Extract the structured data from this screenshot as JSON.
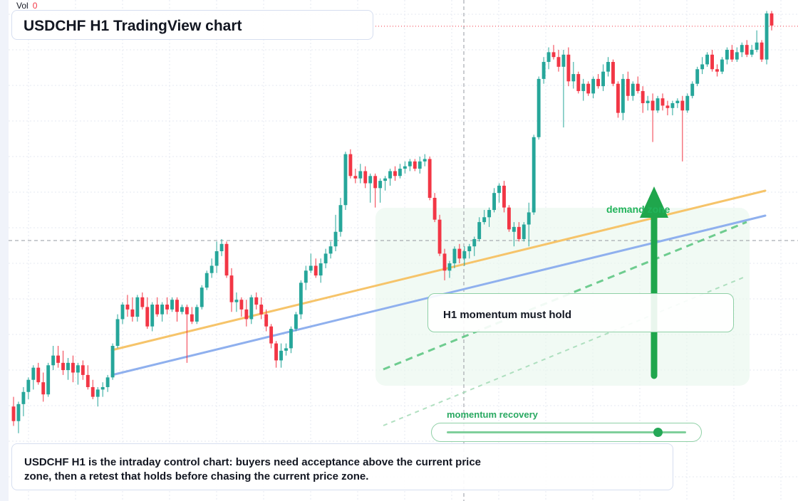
{
  "header": {
    "vol_label": "Vol",
    "vol_value": "0",
    "title": "USDCHF H1 TradingView chart"
  },
  "annotations": {
    "callout": "H1 momentum must hold",
    "zone_label": "demand zone",
    "momentum_label": "momentum recovery",
    "momentum_level": 0.88
  },
  "footer": {
    "text": "USDCHF H1 is the intraday control chart: buyers need acceptance above the current price zone, then a retest that holds before chasing the current price zone."
  },
  "colors": {
    "up": "#26a69a",
    "down": "#f23645",
    "resistance_line": "#f6c46a",
    "trend_line": "#8fb0ee",
    "arrow": "#1fa64c",
    "zone": "#e8f6ec"
  },
  "chart_data": {
    "type": "candlestick",
    "y_unit": "price (relative, no scale printed)",
    "y_range": [
      0,
      100
    ],
    "candles_ohlc": [
      [
        18.0,
        20.0,
        14.0,
        15.0
      ],
      [
        15.0,
        19.0,
        12.5,
        18.5
      ],
      [
        18.5,
        22.0,
        16.0,
        21.0
      ],
      [
        21.0,
        24.0,
        19.5,
        23.5
      ],
      [
        23.5,
        26.5,
        21.5,
        26.0
      ],
      [
        26.0,
        27.0,
        22.5,
        23.0
      ],
      [
        23.0,
        25.0,
        19.0,
        20.5
      ],
      [
        20.5,
        27.0,
        20.0,
        26.5
      ],
      [
        26.5,
        30.5,
        25.5,
        28.5
      ],
      [
        28.5,
        30.5,
        26.0,
        27.0
      ],
      [
        27.0,
        29.5,
        24.5,
        25.5
      ],
      [
        25.5,
        28.0,
        23.5,
        27.0
      ],
      [
        27.0,
        28.5,
        23.0,
        25.0
      ],
      [
        25.0,
        27.0,
        22.5,
        26.5
      ],
      [
        26.5,
        27.5,
        23.5,
        24.5
      ],
      [
        24.5,
        26.5,
        21.5,
        22.0
      ],
      [
        22.0,
        23.5,
        19.5,
        20.0
      ],
      [
        20.0,
        22.0,
        18.0,
        21.5
      ],
      [
        21.5,
        23.0,
        20.0,
        22.0
      ],
      [
        22.0,
        24.5,
        21.0,
        24.0
      ],
      [
        24.0,
        31.0,
        23.5,
        30.5
      ],
      [
        30.5,
        37.0,
        30.0,
        36.0
      ],
      [
        36.0,
        39.5,
        35.0,
        39.0
      ],
      [
        39.0,
        41.0,
        36.5,
        38.0
      ],
      [
        38.0,
        40.5,
        35.5,
        36.5
      ],
      [
        36.5,
        41.0,
        35.5,
        40.5
      ],
      [
        40.5,
        41.5,
        38.0,
        38.5
      ],
      [
        38.5,
        40.5,
        34.0,
        34.5
      ],
      [
        34.5,
        39.5,
        33.5,
        39.0
      ],
      [
        39.0,
        40.5,
        36.5,
        37.0
      ],
      [
        37.0,
        39.5,
        35.5,
        39.0
      ],
      [
        39.0,
        40.5,
        37.0,
        38.0
      ],
      [
        38.0,
        40.5,
        37.5,
        40.0
      ],
      [
        40.0,
        40.5,
        35.5,
        37.5
      ],
      [
        37.5,
        39.0,
        37.0,
        38.5
      ],
      [
        38.5,
        39.0,
        27.0,
        37.0
      ],
      [
        37.0,
        38.5,
        35.0,
        35.5
      ],
      [
        35.5,
        39.0,
        35.0,
        38.5
      ],
      [
        38.5,
        43.0,
        38.0,
        42.5
      ],
      [
        42.5,
        46.0,
        42.0,
        45.5
      ],
      [
        45.5,
        48.5,
        44.5,
        47.0
      ],
      [
        47.0,
        52.0,
        45.5,
        50.0
      ],
      [
        50.0,
        52.5,
        49.0,
        51.5
      ],
      [
        51.5,
        52.0,
        44.5,
        45.0
      ],
      [
        45.0,
        46.5,
        37.5,
        39.5
      ],
      [
        39.5,
        41.5,
        37.5,
        40.0
      ],
      [
        40.0,
        40.5,
        36.5,
        38.0
      ],
      [
        38.0,
        40.0,
        34.5,
        36.0
      ],
      [
        36.0,
        41.0,
        35.0,
        40.5
      ],
      [
        40.5,
        41.5,
        38.0,
        39.0
      ],
      [
        39.0,
        40.5,
        36.0,
        37.0
      ],
      [
        37.0,
        38.0,
        33.5,
        34.5
      ],
      [
        34.5,
        35.0,
        30.0,
        31.0
      ],
      [
        31.0,
        31.5,
        26.0,
        27.5
      ],
      [
        27.5,
        31.0,
        26.0,
        29.5
      ],
      [
        29.5,
        31.0,
        28.5,
        30.0
      ],
      [
        30.0,
        34.5,
        29.0,
        34.0
      ],
      [
        34.0,
        37.5,
        33.5,
        37.0
      ],
      [
        37.0,
        44.0,
        36.0,
        43.5
      ],
      [
        43.5,
        47.0,
        42.0,
        46.0
      ],
      [
        46.0,
        49.5,
        45.5,
        47.0
      ],
      [
        47.0,
        48.5,
        44.5,
        45.0
      ],
      [
        45.0,
        48.5,
        43.5,
        47.5
      ],
      [
        47.5,
        50.5,
        46.5,
        49.5
      ],
      [
        49.5,
        52.0,
        48.5,
        51.0
      ],
      [
        51.0,
        57.5,
        50.0,
        54.0
      ],
      [
        54.0,
        61.0,
        53.0,
        59.5
      ],
      [
        59.5,
        70.5,
        58.5,
        70.0
      ],
      [
        70.0,
        71.0,
        65.0,
        65.5
      ],
      [
        65.5,
        67.0,
        64.0,
        65.0
      ],
      [
        65.0,
        68.0,
        64.0,
        66.5
      ],
      [
        66.5,
        67.5,
        63.0,
        64.0
      ],
      [
        64.0,
        66.0,
        60.0,
        65.5
      ],
      [
        65.5,
        66.0,
        59.0,
        63.0
      ],
      [
        63.0,
        65.0,
        60.0,
        64.5
      ],
      [
        64.5,
        65.5,
        62.5,
        65.0
      ],
      [
        65.0,
        67.0,
        63.5,
        66.5
      ],
      [
        66.5,
        67.5,
        64.5,
        65.5
      ],
      [
        65.5,
        68.0,
        65.0,
        67.0
      ],
      [
        67.0,
        68.5,
        66.0,
        67.5
      ],
      [
        67.5,
        69.0,
        66.5,
        68.5
      ],
      [
        68.5,
        69.0,
        66.5,
        67.0
      ],
      [
        67.0,
        69.5,
        66.0,
        68.5
      ],
      [
        68.5,
        70.0,
        67.5,
        69.0
      ],
      [
        69.0,
        69.5,
        60.5,
        61.0
      ],
      [
        61.0,
        62.0,
        56.0,
        56.5
      ],
      [
        56.5,
        57.5,
        49.0,
        49.5
      ],
      [
        49.5,
        50.5,
        44.0,
        46.0
      ],
      [
        46.0,
        48.0,
        44.5,
        47.5
      ],
      [
        47.5,
        51.0,
        46.5,
        50.5
      ],
      [
        50.5,
        51.5,
        47.5,
        48.5
      ],
      [
        48.5,
        51.0,
        47.0,
        50.0
      ],
      [
        50.0,
        51.5,
        48.5,
        51.0
      ],
      [
        51.0,
        53.0,
        49.0,
        52.5
      ],
      [
        52.5,
        57.0,
        52.0,
        56.0
      ],
      [
        56.0,
        58.5,
        55.5,
        57.0
      ],
      [
        57.0,
        59.0,
        55.0,
        58.5
      ],
      [
        58.5,
        63.0,
        58.0,
        62.0
      ],
      [
        62.0,
        64.0,
        60.0,
        63.5
      ],
      [
        63.5,
        64.5,
        58.0,
        59.0
      ],
      [
        59.0,
        59.5,
        54.0,
        54.5
      ],
      [
        54.0,
        56.0,
        51.0,
        55.0
      ],
      [
        55.0,
        56.0,
        52.0,
        52.5
      ],
      [
        52.5,
        56.0,
        52.0,
        55.5
      ],
      [
        55.5,
        60.0,
        51.0,
        58.0
      ],
      [
        58.0,
        74.0,
        57.5,
        73.5
      ],
      [
        73.5,
        86.0,
        73.0,
        85.5
      ],
      [
        85.5,
        90.0,
        84.5,
        89.0
      ],
      [
        89.0,
        92.0,
        87.5,
        91.0
      ],
      [
        91.0,
        92.5,
        89.5,
        90.0
      ],
      [
        90.0,
        91.5,
        87.0,
        88.0
      ],
      [
        88.0,
        91.5,
        75.5,
        90.5
      ],
      [
        90.5,
        92.0,
        84.0,
        85.0
      ],
      [
        85.0,
        89.0,
        83.5,
        86.5
      ],
      [
        86.5,
        87.0,
        82.5,
        83.0
      ],
      [
        83.0,
        85.5,
        81.0,
        84.5
      ],
      [
        84.5,
        85.0,
        82.0,
        82.5
      ],
      [
        82.5,
        86.0,
        81.5,
        85.5
      ],
      [
        85.5,
        86.5,
        83.5,
        84.0
      ],
      [
        84.0,
        88.5,
        83.0,
        87.0
      ],
      [
        87.0,
        90.0,
        86.0,
        89.0
      ],
      [
        89.0,
        89.5,
        84.0,
        84.5
      ],
      [
        84.5,
        85.0,
        77.5,
        78.5
      ],
      [
        78.5,
        86.5,
        77.0,
        85.5
      ],
      [
        85.5,
        87.0,
        81.0,
        82.0
      ],
      [
        82.0,
        85.0,
        81.0,
        84.5
      ],
      [
        84.5,
        86.0,
        82.5,
        83.0
      ],
      [
        83.0,
        84.0,
        78.5,
        80.5
      ],
      [
        80.5,
        82.0,
        79.0,
        81.0
      ],
      [
        81.0,
        82.5,
        72.5,
        79.0
      ],
      [
        79.0,
        82.0,
        78.5,
        81.5
      ],
      [
        81.5,
        82.5,
        79.0,
        80.0
      ],
      [
        80.0,
        81.0,
        78.0,
        79.5
      ],
      [
        79.5,
        81.0,
        78.0,
        80.5
      ],
      [
        80.5,
        81.5,
        79.5,
        81.0
      ],
      [
        81.0,
        82.0,
        68.5,
        79.0
      ],
      [
        79.0,
        82.5,
        78.5,
        82.0
      ],
      [
        82.0,
        85.0,
        81.5,
        84.5
      ],
      [
        84.5,
        88.0,
        84.0,
        87.5
      ],
      [
        87.5,
        90.0,
        86.5,
        88.5
      ],
      [
        88.5,
        91.0,
        88.0,
        90.5
      ],
      [
        90.5,
        91.5,
        87.0,
        87.5
      ],
      [
        87.5,
        88.5,
        86.0,
        87.0
      ],
      [
        87.0,
        90.0,
        86.5,
        89.5
      ],
      [
        89.5,
        92.0,
        88.5,
        91.5
      ],
      [
        91.5,
        92.5,
        89.0,
        89.5
      ],
      [
        89.5,
        92.0,
        89.0,
        91.0
      ],
      [
        91.0,
        93.0,
        90.0,
        92.5
      ],
      [
        92.5,
        93.5,
        90.0,
        90.5
      ],
      [
        90.5,
        92.5,
        90.0,
        91.5
      ],
      [
        91.5,
        95.5,
        91.0,
        93.0
      ],
      [
        93.0,
        93.5,
        89.0,
        89.5
      ],
      [
        89.5,
        99.5,
        88.5,
        99.0
      ],
      [
        99.0,
        99.5,
        95.5,
        96.5
      ]
    ]
  }
}
